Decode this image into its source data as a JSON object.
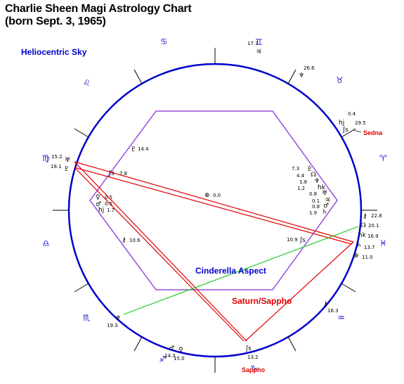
{
  "title": {
    "line1": "Charlie Sheen Magi Astrology Chart",
    "line2": "(born Sept. 3, 1965)"
  },
  "sky_label": "Heliocentric Sky",
  "aspects": {
    "cinderella": "Cinderella Aspect",
    "saturn_sappho": "Saturn/Sappho"
  },
  "point_labels": {
    "sedna": "Sedna",
    "sappho": "Sappho"
  },
  "zodiac": [
    {
      "name": "cancer",
      "glyph": "♋"
    },
    {
      "name": "gemini",
      "glyph": "♊"
    },
    {
      "name": "taurus",
      "glyph": "♉"
    },
    {
      "name": "aries",
      "glyph": "♈"
    },
    {
      "name": "pisces",
      "glyph": "♓"
    },
    {
      "name": "aquarius",
      "glyph": "♒"
    },
    {
      "name": "capricorn",
      "glyph": "♑"
    },
    {
      "name": "sagittarius",
      "glyph": "♐"
    },
    {
      "name": "scorpio",
      "glyph": "♏"
    },
    {
      "name": "libra",
      "glyph": "♎"
    },
    {
      "name": "virgo",
      "glyph": "♍"
    },
    {
      "name": "leo",
      "glyph": "♌"
    }
  ],
  "outer_points": [
    {
      "name": "gemini-jupiter",
      "glyph": "♃",
      "deg": "17.7"
    },
    {
      "name": "taurus-neptune",
      "glyph": "♆",
      "deg": "26.6"
    },
    {
      "name": "aries-planet-0",
      "glyph": "",
      "deg": "0.4"
    },
    {
      "name": "aries-hj",
      "glyph": "hj",
      "deg": "29.5"
    },
    {
      "name": "aries-sedna",
      "glyph": "ʃs",
      "deg": ""
    },
    {
      "name": "virgo-uranus",
      "glyph": "♅",
      "deg": "15.2"
    },
    {
      "name": "virgo-pluto",
      "glyph": "♇",
      "deg": "18.1"
    },
    {
      "name": "pisces-chiron",
      "glyph": "⚷",
      "deg": "22.8"
    },
    {
      "name": "pisces-node",
      "glyph": "☊",
      "deg": "20.1"
    },
    {
      "name": "pisces-hk",
      "glyph": "hk",
      "deg": "16.9"
    },
    {
      "name": "pisces-saturn",
      "glyph": "♄",
      "deg": "13.7"
    },
    {
      "name": "pisces-earth",
      "glyph": "⊕",
      "deg": "11.0"
    },
    {
      "name": "aquarius-chiron",
      "glyph": "⚷",
      "deg": "16.3"
    },
    {
      "name": "scorpio-neptune",
      "glyph": "♆",
      "deg": "19.3"
    },
    {
      "name": "sagittarius-mars",
      "glyph": "♂",
      "deg": "14.3"
    },
    {
      "name": "sagittarius-venus",
      "glyph": "♀",
      "deg": "15.0"
    },
    {
      "name": "capricorn-sappho",
      "glyph": "ʃs",
      "deg": "13.2"
    }
  ],
  "inner_points": [
    {
      "name": "inner-pluto",
      "glyph": "♇",
      "deg": "14.4"
    },
    {
      "name": "inner-sappho",
      "glyph": "ʃs",
      "deg": "7.8"
    },
    {
      "name": "inner-earth",
      "glyph": "⊕",
      "deg": "0.0"
    },
    {
      "name": "inner-venus",
      "glyph": "♀",
      "deg": "0.5"
    },
    {
      "name": "inner-mars",
      "glyph": "♂",
      "deg": "0.5"
    },
    {
      "name": "inner-hj",
      "glyph": "hj",
      "deg": "1.7"
    },
    {
      "name": "inner-chiron",
      "glyph": "⚷",
      "deg": "10.6"
    },
    {
      "name": "inner-r1",
      "glyph": "♇",
      "deg": "7.3"
    },
    {
      "name": "inner-r2",
      "glyph": "☊",
      "deg": "4.4"
    },
    {
      "name": "inner-r3",
      "glyph": "♆",
      "deg": "1.8"
    },
    {
      "name": "inner-r4",
      "glyph": "hk",
      "deg": "1.2"
    },
    {
      "name": "inner-r5",
      "glyph": "♅",
      "deg": "0.8"
    },
    {
      "name": "inner-r6",
      "glyph": "♃",
      "deg": "0.1"
    },
    {
      "name": "inner-r7",
      "glyph": "♂",
      "deg": "0.8"
    },
    {
      "name": "inner-r8",
      "glyph": "♄",
      "deg": "1.9"
    },
    {
      "name": "inner-sappho-2",
      "glyph": "ʃs",
      "deg": "10.9"
    }
  ],
  "colors": {
    "circle": "#0000cc",
    "hexagon": "#9b4fd9",
    "red_lines": "#e00000",
    "green_line": "#22cc22"
  }
}
